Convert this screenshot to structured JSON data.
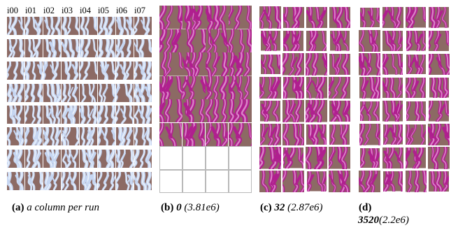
{
  "panel_a": {
    "column_headers": [
      "i00",
      "i01",
      "i02",
      "i03",
      "i04",
      "i05",
      "i06",
      "i07"
    ]
  },
  "colors": {
    "background_brown": "#8c6a64",
    "pattern_light_blue": "#c6d6f2",
    "pattern_magenta": "#b01f8f",
    "frame_white": "#ffffff"
  },
  "captions": {
    "a": {
      "label": "(a)",
      "text": "a column per run"
    },
    "b": {
      "label": "(b)",
      "value": "0",
      "detail": "(3.81e6)"
    },
    "c": {
      "label": "(c)",
      "value": "32",
      "detail": "(2.87e6)"
    },
    "d": {
      "label": "(d)",
      "value": "3520",
      "detail": "(2.2e6)"
    }
  }
}
